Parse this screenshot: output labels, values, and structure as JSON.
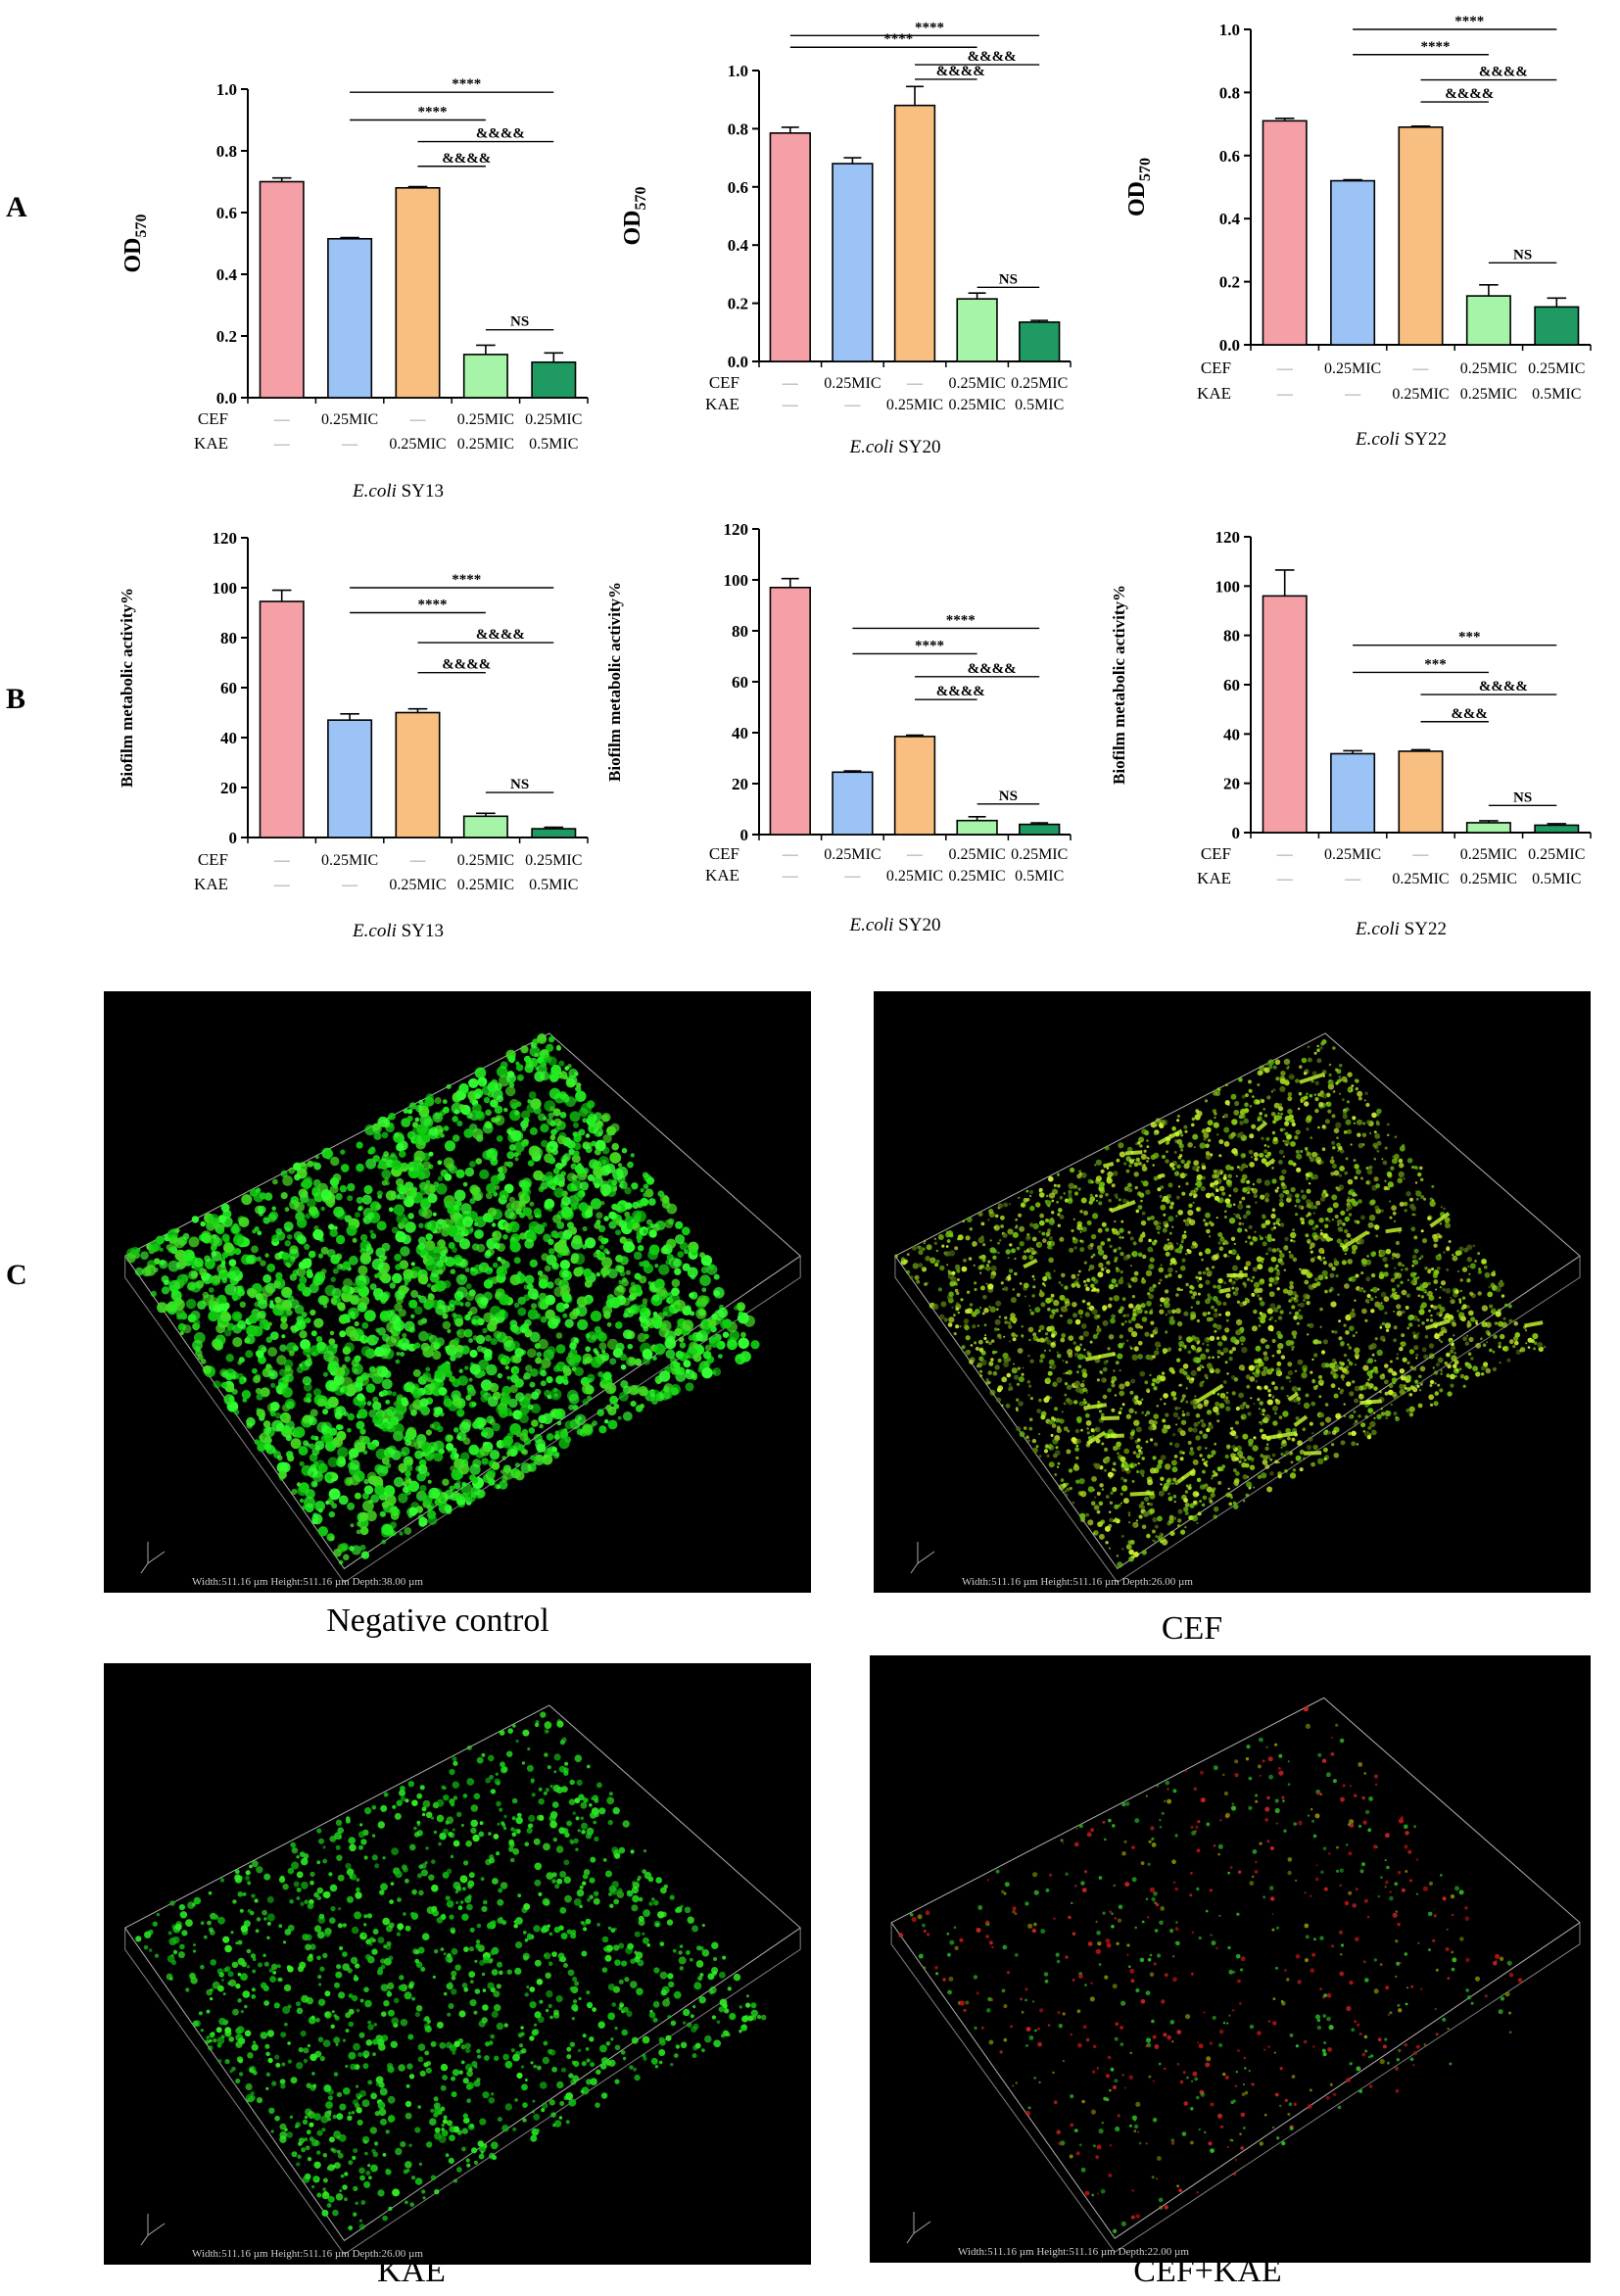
{
  "panel_letters": {
    "a": "A",
    "b": "B",
    "c": "C"
  },
  "colors": [
    "#f4a0a6",
    "#9cc3f5",
    "#f9bf80",
    "#a6f4a8",
    "#1f9a62"
  ],
  "chart_data": [
    {
      "type": "bar",
      "panel": "A",
      "ylabel": "OD570",
      "ylim": [
        0,
        1.0
      ],
      "yticks": [
        "0.0",
        "0.2",
        "0.4",
        "0.6",
        "0.8",
        "1.0"
      ],
      "row_labels": [
        "CEF",
        "KAE"
      ],
      "cef": [
        "—",
        "0.25MIC",
        "—",
        "0.25MIC",
        "0.25MIC"
      ],
      "kae": [
        "—",
        "—",
        "0.25MIC",
        "0.25MIC",
        "0.5MIC"
      ],
      "values": [
        0.7,
        0.515,
        0.68,
        0.14,
        0.115
      ],
      "errors": [
        0.012,
        0.004,
        0.004,
        0.03,
        0.03
      ],
      "caption_italic": "E.coli",
      "caption_rest": " SY13",
      "sig": [
        {
          "from": 1,
          "to": 4,
          "y": 0.99,
          "label": "****"
        },
        {
          "from": 1,
          "to": 3,
          "y": 0.9,
          "label": "****"
        },
        {
          "from": 2,
          "to": 4,
          "y": 0.83,
          "label": "&&&&"
        },
        {
          "from": 2,
          "to": 3,
          "y": 0.75,
          "label": "&&&&"
        },
        {
          "from": 3,
          "to": 4,
          "y": 0.22,
          "label": "NS"
        }
      ]
    },
    {
      "type": "bar",
      "panel": "A",
      "ylabel": "OD570",
      "ylim": [
        0,
        1.0
      ],
      "yticks": [
        "0.0",
        "0.2",
        "0.4",
        "0.6",
        "0.8",
        "1.0"
      ],
      "row_labels": [
        "CEF",
        "KAE"
      ],
      "cef": [
        "—",
        "0.25MIC",
        "—",
        "0.25MIC",
        "0.25MIC"
      ],
      "kae": [
        "—",
        "—",
        "0.25MIC",
        "0.25MIC",
        "0.5MIC"
      ],
      "values": [
        0.785,
        0.68,
        0.88,
        0.215,
        0.135
      ],
      "errors": [
        0.02,
        0.02,
        0.065,
        0.02,
        0.006
      ],
      "caption_italic": "E.coli",
      "caption_rest": " SY20",
      "sig": [
        {
          "from": 0,
          "to": 4,
          "y": 1.12,
          "label": "****"
        },
        {
          "from": 0,
          "to": 3,
          "y": 1.08,
          "label": "****"
        },
        {
          "from": 2,
          "to": 4,
          "y": 1.02,
          "label": "&&&&"
        },
        {
          "from": 2,
          "to": 3,
          "y": 0.97,
          "label": "&&&&"
        },
        {
          "from": 3,
          "to": 4,
          "y": 0.255,
          "label": "NS"
        }
      ]
    },
    {
      "type": "bar",
      "panel": "A",
      "ylabel": "OD570",
      "ylim": [
        0,
        1.0
      ],
      "yticks": [
        "0.0",
        "0.2",
        "0.4",
        "0.6",
        "0.8",
        "1.0"
      ],
      "row_labels": [
        "CEF",
        "KAE"
      ],
      "cef": [
        "—",
        "0.25MIC",
        "—",
        "0.25MIC",
        "0.25MIC"
      ],
      "kae": [
        "—",
        "—",
        "0.25MIC",
        "0.25MIC",
        "0.5MIC"
      ],
      "values": [
        0.71,
        0.52,
        0.69,
        0.155,
        0.12
      ],
      "errors": [
        0.008,
        0.003,
        0.003,
        0.035,
        0.028
      ],
      "caption_italic": "E.coli",
      "caption_rest": " SY22",
      "sig": [
        {
          "from": 1,
          "to": 4,
          "y": 1.0,
          "label": "****"
        },
        {
          "from": 1,
          "to": 3,
          "y": 0.92,
          "label": "****"
        },
        {
          "from": 2,
          "to": 4,
          "y": 0.84,
          "label": "&&&&"
        },
        {
          "from": 2,
          "to": 3,
          "y": 0.77,
          "label": "&&&&"
        },
        {
          "from": 3,
          "to": 4,
          "y": 0.26,
          "label": "NS"
        }
      ]
    },
    {
      "type": "bar",
      "panel": "B",
      "ylabel": "Biofilm metabolic activity%",
      "ylim": [
        0,
        120
      ],
      "yticks": [
        "0",
        "20",
        "40",
        "60",
        "80",
        "100",
        "120"
      ],
      "row_labels": [
        "CEF",
        "KAE"
      ],
      "cef": [
        "—",
        "0.25MIC",
        "—",
        "0.25MIC",
        "0.25MIC"
      ],
      "kae": [
        "—",
        "—",
        "0.25MIC",
        "0.25MIC",
        "0.5MIC"
      ],
      "values": [
        94.5,
        47,
        50,
        8.5,
        3.5
      ],
      "errors": [
        4.5,
        2.5,
        1.5,
        1.2,
        0.6
      ],
      "caption_italic": "E.coli",
      "caption_rest": " SY13",
      "sig": [
        {
          "from": 1,
          "to": 4,
          "y": 100,
          "label": "****"
        },
        {
          "from": 1,
          "to": 3,
          "y": 90,
          "label": "****"
        },
        {
          "from": 2,
          "to": 4,
          "y": 78,
          "label": "&&&&"
        },
        {
          "from": 2,
          "to": 3,
          "y": 66,
          "label": "&&&&"
        },
        {
          "from": 3,
          "to": 4,
          "y": 18,
          "label": "NS"
        }
      ]
    },
    {
      "type": "bar",
      "panel": "B",
      "ylabel": "Biofilm metabolic activity%",
      "ylim": [
        0,
        120
      ],
      "yticks": [
        "0",
        "20",
        "40",
        "60",
        "80",
        "100",
        "120"
      ],
      "row_labels": [
        "CEF",
        "KAE"
      ],
      "cef": [
        "—",
        "0.25MIC",
        "—",
        "0.25MIC",
        "0.25MIC"
      ],
      "kae": [
        "—",
        "—",
        "0.25MIC",
        "0.25MIC",
        "0.5MIC"
      ],
      "values": [
        97,
        24.5,
        38.5,
        5.5,
        4
      ],
      "errors": [
        3.5,
        0.5,
        0.5,
        1.5,
        0.6
      ],
      "caption_italic": "E.coli",
      "caption_rest": " SY20",
      "sig": [
        {
          "from": 1,
          "to": 4,
          "y": 81,
          "label": "****"
        },
        {
          "from": 1,
          "to": 3,
          "y": 71,
          "label": "****"
        },
        {
          "from": 2,
          "to": 4,
          "y": 62,
          "label": "&&&&"
        },
        {
          "from": 2,
          "to": 3,
          "y": 53,
          "label": "&&&&"
        },
        {
          "from": 3,
          "to": 4,
          "y": 12,
          "label": "NS"
        }
      ]
    },
    {
      "type": "bar",
      "panel": "B",
      "ylabel": "Biofilm metabolic activity%",
      "ylim": [
        0,
        120
      ],
      "yticks": [
        "0",
        "20",
        "40",
        "60",
        "80",
        "100",
        "120"
      ],
      "row_labels": [
        "CEF",
        "KAE"
      ],
      "cef": [
        "—",
        "0.25MIC",
        "—",
        "0.25MIC",
        "0.25MIC"
      ],
      "kae": [
        "—",
        "—",
        "0.25MIC",
        "0.25MIC",
        "0.5MIC"
      ],
      "values": [
        96,
        32,
        33,
        4,
        3
      ],
      "errors": [
        10.5,
        1.2,
        0.6,
        0.8,
        0.6
      ],
      "caption_italic": "E.coli",
      "caption_rest": " SY22",
      "sig": [
        {
          "from": 1,
          "to": 4,
          "y": 76,
          "label": "***"
        },
        {
          "from": 1,
          "to": 3,
          "y": 65,
          "label": "***"
        },
        {
          "from": 2,
          "to": 4,
          "y": 56,
          "label": "&&&&"
        },
        {
          "from": 2,
          "to": 3,
          "y": 45,
          "label": "&&&"
        },
        {
          "from": 3,
          "to": 4,
          "y": 11,
          "label": "NS"
        }
      ]
    }
  ],
  "microscopy": [
    {
      "caption": "Negative control",
      "scale": "Width:511.16 µm Height:511.16 µm Depth:38.00 µm",
      "style": "dense-green"
    },
    {
      "caption": "CEF",
      "scale": "Width:511.16 µm Height:511.16 µm Depth:26.00 µm",
      "style": "yellow-green"
    },
    {
      "caption": "KAE",
      "scale": "Width:511.16 µm Height:511.16 µm Depth:26.00 µm",
      "style": "sparse-green"
    },
    {
      "caption": "CEF+KAE",
      "scale": "Width:511.16 µm Height:511.16 µm Depth:22.00 µm",
      "style": "red-green"
    }
  ]
}
